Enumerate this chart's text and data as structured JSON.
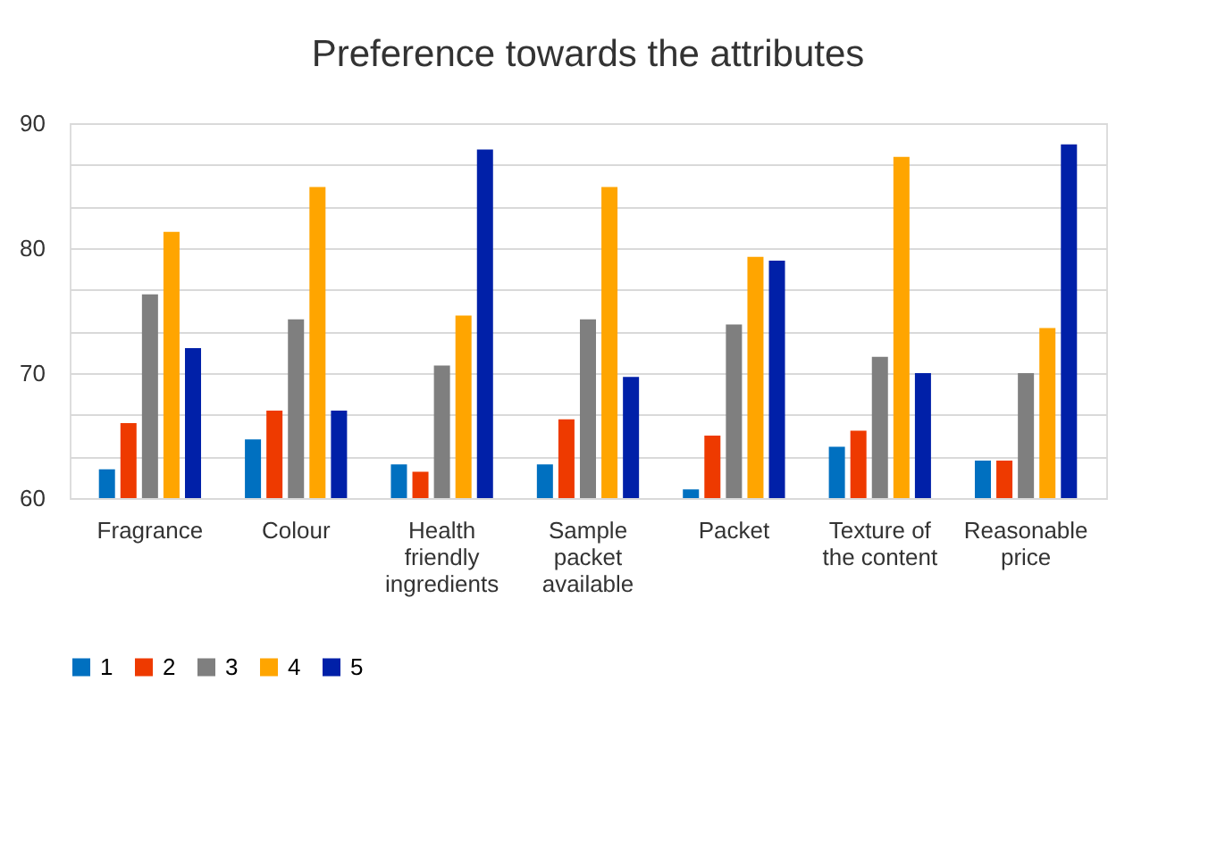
{
  "chart_data": {
    "type": "bar",
    "title": "Preference towards the attributes",
    "categories": [
      "Fragrance",
      "Colour",
      "Health\n\nfriendly\ningredients",
      "Sample\n\npacket\navailable",
      "Packet",
      "Texture of\nthe content",
      "Reasonable\nprice"
    ],
    "series": [
      {
        "name": "1",
        "color": "#0070c0",
        "values": [
          62.3,
          64.7,
          62.7,
          62.7,
          60.7,
          64.1,
          63.0
        ]
      },
      {
        "name": "2",
        "color": "#ee3a00",
        "values": [
          66.0,
          67.0,
          62.1,
          66.3,
          65.0,
          65.4,
          63.0
        ]
      },
      {
        "name": "3",
        "color": "#7f7f7f",
        "values": [
          76.3,
          74.3,
          70.6,
          74.3,
          73.9,
          71.3,
          70.0
        ]
      },
      {
        "name": "4",
        "color": "#ffa500",
        "values": [
          81.3,
          84.9,
          74.6,
          84.9,
          79.3,
          87.3,
          73.6
        ]
      },
      {
        "name": "5",
        "color": "#0020a8",
        "values": [
          72.0,
          67.0,
          87.9,
          69.7,
          79.0,
          70.0,
          88.3
        ]
      }
    ],
    "ylim": [
      60,
      90
    ],
    "yticks": [
      60,
      {
        "value": 63.333,
        "label": null
      },
      {
        "value": 66.667,
        "label": null
      },
      70,
      {
        "value": 73.333,
        "label": null
      },
      {
        "value": 76.667,
        "label": null
      },
      80,
      {
        "value": 83.333,
        "label": null
      },
      {
        "value": 86.667,
        "label": null
      },
      90
    ],
    "grid": "y",
    "legend": "bottom"
  }
}
